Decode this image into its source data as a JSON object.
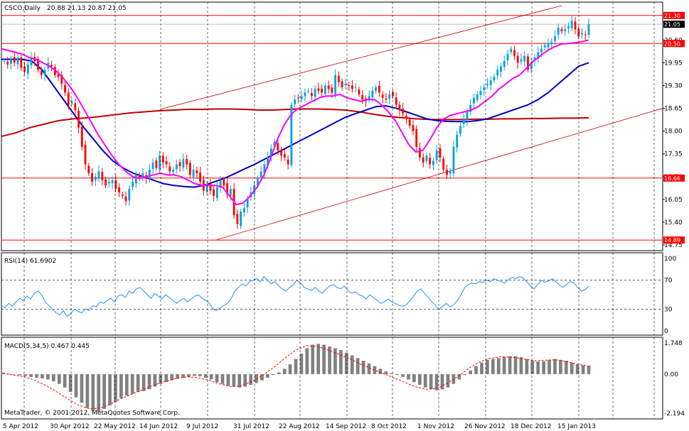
{
  "chart_data": [
    {
      "type": "candlestick",
      "panel": "price",
      "title": "CSCO,Daily",
      "ohlc_header": "20.88 21.13 20.87 21.05",
      "ylim": [
        14.75,
        21.6
      ],
      "y_ticks": [
        "20.60",
        "19.95",
        "19.30",
        "18.65",
        "18.00",
        "17.35",
        "16.70",
        "16.05",
        "15.40",
        "14.75"
      ],
      "x_tick_labels": [
        "5 Apr 2012",
        "30 Apr 2012",
        "22 May 2012",
        "14 Jun 2012",
        "9 Jul 2012",
        "31 Jul 2012",
        "22 Aug 2012",
        "14 Sep 2012",
        "8 Oct 2012",
        "1 Nov 2012",
        "26 Nov 2012",
        "18 Dec 2012",
        "15 Jan 2013"
      ],
      "horizontal_levels": [
        {
          "value": 21.3,
          "label": "21.30",
          "color": "#ff0000"
        },
        {
          "value": 20.5,
          "label": "20.50",
          "color": "#ff0000"
        },
        {
          "value": 16.66,
          "label": "16.66",
          "color": "#ff0000"
        },
        {
          "value": 14.89,
          "label": "14.89",
          "color": "#ff0000"
        }
      ],
      "current_price": {
        "value": 21.05,
        "label": "21.05"
      },
      "colors": {
        "bull": "#00a0e0",
        "bear": "#ff0000",
        "sma_fast": "#ff00ff",
        "sma_mid": "#0000c0",
        "sma_slow": "#c00000",
        "channel": "#c00000",
        "grid": "#000000"
      },
      "close": [
        20.0,
        19.9,
        20.05,
        19.95,
        20.1,
        19.8,
        19.7,
        19.9,
        20.1,
        20.0,
        19.75,
        19.6,
        19.75,
        19.95,
        19.85,
        19.6,
        19.55,
        19.35,
        19.1,
        18.75,
        18.85,
        18.6,
        18.1,
        17.55,
        17.05,
        16.8,
        16.55,
        16.7,
        16.85,
        16.6,
        16.45,
        16.55,
        16.6,
        16.35,
        16.25,
        16.15,
        16.0,
        16.35,
        16.55,
        16.75,
        16.65,
        16.8,
        16.65,
        16.9,
        17.1,
        16.95,
        17.3,
        17.1,
        17.05,
        16.85,
        16.9,
        17.05,
        17.0,
        17.2,
        17.05,
        16.75,
        16.9,
        16.8,
        16.55,
        16.3,
        16.5,
        16.3,
        16.15,
        16.4,
        16.6,
        16.45,
        16.2,
        16.35,
        15.6,
        15.35,
        15.7,
        15.8,
        16.05,
        16.25,
        16.45,
        16.65,
        16.85,
        17.05,
        17.25,
        17.5,
        17.7,
        17.45,
        17.3,
        17.25,
        17.05,
        18.75,
        18.9,
        18.95,
        19.0,
        19.1,
        19.15,
        19.0,
        19.2,
        19.15,
        19.1,
        19.3,
        19.2,
        19.1,
        19.6,
        19.4,
        19.25,
        19.35,
        19.3,
        19.2,
        19.25,
        19.05,
        18.9,
        18.85,
        19.0,
        19.15,
        19.25,
        19.1,
        18.95,
        18.9,
        19.05,
        19.0,
        18.75,
        18.6,
        18.5,
        18.35,
        18.15,
        18.0,
        17.55,
        17.25,
        17.1,
        17.3,
        17.05,
        17.15,
        17.45,
        17.25,
        16.9,
        16.75,
        16.85,
        17.55,
        17.9,
        18.15,
        18.35,
        18.55,
        18.75,
        18.95,
        19.05,
        19.15,
        19.25,
        19.35,
        19.45,
        19.55,
        19.75,
        19.85,
        20.0,
        20.2,
        20.35,
        20.15,
        19.95,
        20.05,
        20.15,
        19.75,
        19.95,
        20.1,
        20.25,
        20.35,
        20.45,
        20.5,
        20.55,
        20.7,
        20.95,
        20.85,
        20.9,
        21.0,
        21.15,
        20.9,
        20.7,
        20.8,
        20.75,
        21.05
      ],
      "sma_fast": [
        20.35,
        20.3,
        20.25,
        20.2,
        20.1,
        20.05,
        19.95,
        19.85,
        19.7,
        19.5,
        19.25,
        18.95,
        18.6,
        18.25,
        17.9,
        17.6,
        17.3,
        17.05,
        16.85,
        16.7,
        16.65,
        16.7,
        16.75,
        16.8,
        16.75,
        16.75,
        16.7,
        16.6,
        16.5,
        16.45,
        16.45,
        16.45,
        16.4,
        16.15,
        15.9,
        15.95,
        16.15,
        16.4,
        16.75,
        17.25,
        17.8,
        18.2,
        18.5,
        18.65,
        18.75,
        18.85,
        18.95,
        19.0,
        19.0,
        19.05,
        18.95,
        18.9,
        18.85,
        18.9,
        18.9,
        18.75,
        18.55,
        18.3,
        17.95,
        17.6,
        17.4,
        17.45,
        17.75,
        18.1,
        18.35,
        18.45,
        18.5,
        18.55,
        18.6,
        18.7,
        18.85,
        19.0,
        19.2,
        19.35,
        19.5,
        19.6,
        19.8,
        20.0,
        20.15,
        20.3,
        20.4,
        20.48,
        20.5,
        20.52,
        20.55,
        20.6
      ],
      "sma_mid": [
        20.05,
        20.05,
        20.05,
        20.0,
        19.75,
        19.35,
        18.95,
        18.55,
        18.15,
        17.8,
        17.45,
        17.15,
        16.95,
        16.8,
        16.7,
        16.6,
        16.5,
        16.45,
        16.42,
        16.4,
        16.45,
        16.55,
        16.65,
        16.78,
        16.92,
        17.05,
        17.2,
        17.35,
        17.5,
        17.65,
        17.8,
        17.95,
        18.1,
        18.25,
        18.4,
        18.5,
        18.6,
        18.7,
        18.72,
        18.65,
        18.55,
        18.45,
        18.35,
        18.3,
        18.28,
        18.27,
        18.27,
        18.3,
        18.35,
        18.45,
        18.55,
        18.65,
        18.75,
        18.9,
        19.1,
        19.35,
        19.6,
        19.85,
        19.95
      ],
      "sma_slow": [
        17.85,
        17.95,
        18.1,
        18.2,
        18.3,
        18.35,
        18.38,
        18.42,
        18.47,
        18.52,
        18.55,
        18.58,
        18.6,
        18.62,
        18.62,
        18.63,
        18.63,
        18.62,
        18.6,
        18.6,
        18.62,
        18.63,
        18.63,
        18.62,
        18.6,
        18.55,
        18.48,
        18.42,
        18.38,
        18.35,
        18.33,
        18.33,
        18.33,
        18.34,
        18.34,
        18.35,
        18.35,
        18.36,
        18.36,
        18.37,
        18.37,
        18.38
      ]
    },
    {
      "type": "line",
      "panel": "rsi",
      "title": "RSI(14) 61.6902",
      "ylim": [
        0,
        100
      ],
      "y_ticks": [
        "100",
        "70",
        "30",
        "0"
      ],
      "levels": [
        70,
        30
      ],
      "color": "#1e90ff",
      "values": [
        35,
        32,
        38,
        34,
        40,
        45,
        42,
        48,
        44,
        52,
        55,
        50,
        40,
        35,
        30,
        25,
        22,
        28,
        20,
        24,
        30,
        27,
        25,
        30,
        28,
        35,
        33,
        40,
        38,
        42,
        45,
        40,
        48,
        50,
        46,
        55,
        52,
        58,
        60,
        55,
        50,
        45,
        52,
        48,
        44,
        50,
        46,
        42,
        38,
        42,
        45,
        40,
        44,
        48,
        50,
        45,
        42,
        38,
        30,
        28,
        32,
        35,
        38,
        45,
        55,
        60,
        65,
        62,
        68,
        70,
        72,
        68,
        75,
        70,
        65,
        68,
        62,
        58,
        55,
        60,
        64,
        70,
        66,
        60,
        58,
        56,
        60,
        55,
        52,
        58,
        62,
        64,
        60,
        58,
        62,
        56,
        52,
        54,
        50,
        48,
        44,
        50,
        46,
        42,
        38,
        40,
        44,
        40,
        38,
        35,
        34,
        36,
        42,
        48,
        55,
        58,
        52,
        46,
        40,
        35,
        30,
        34,
        38,
        33,
        36,
        42,
        50,
        60,
        64,
        66,
        65,
        68,
        67,
        70,
        68,
        72,
        70,
        68,
        66,
        71,
        74,
        72,
        75,
        73,
        68,
        62,
        58,
        64,
        70,
        67,
        69,
        72,
        68,
        63,
        60,
        65,
        68,
        66,
        60,
        55,
        57,
        61.69
      ]
    },
    {
      "type": "bar",
      "panel": "macd",
      "title": "MACD(5,34,5) 0.467 0.445",
      "ylim": [
        -2.194,
        1.748
      ],
      "y_ticks": [
        "1.748",
        "0.00",
        "-2.194"
      ],
      "colors": {
        "histogram": "#808080",
        "signal": "#ff0000"
      },
      "histogram": [
        0.08,
        0.03,
        -0.02,
        -0.06,
        -0.1,
        -0.16,
        -0.2,
        -0.24,
        -0.3,
        -0.4,
        -0.55,
        -0.75,
        -1.0,
        -1.3,
        -1.6,
        -1.9,
        -2.05,
        -2.1,
        -1.95,
        -1.75,
        -1.55,
        -1.35,
        -1.2,
        -1.1,
        -1.0,
        -0.95,
        -0.85,
        -0.7,
        -0.55,
        -0.45,
        -0.35,
        -0.25,
        -0.2,
        -0.15,
        -0.1,
        -0.12,
        -0.2,
        -0.3,
        -0.45,
        -0.55,
        -0.65,
        -0.7,
        -0.75,
        -0.7,
        -0.6,
        -0.5,
        -0.35,
        -0.2,
        -0.05,
        0.1,
        0.3,
        0.55,
        0.85,
        1.15,
        1.45,
        1.65,
        1.7,
        1.65,
        1.55,
        1.45,
        1.35,
        1.2,
        1.05,
        0.9,
        0.75,
        0.6,
        0.45,
        0.3,
        0.15,
        0.05,
        -0.05,
        -0.15,
        -0.3,
        -0.45,
        -0.6,
        -0.75,
        -0.85,
        -0.9,
        -0.85,
        -0.75,
        -0.55,
        -0.3,
        -0.05,
        0.2,
        0.45,
        0.65,
        0.8,
        0.85,
        0.9,
        0.95,
        1.0,
        1.0,
        0.95,
        0.85,
        0.75,
        0.7,
        0.72,
        0.8,
        0.85,
        0.8,
        0.75,
        0.65,
        0.55,
        0.5,
        0.47
      ],
      "signal": [
        0.05,
        -0.05,
        -0.15,
        -0.35,
        -0.65,
        -1.0,
        -1.4,
        -1.75,
        -1.95,
        -1.9,
        -1.65,
        -1.35,
        -1.1,
        -0.85,
        -0.6,
        -0.4,
        -0.25,
        -0.15,
        -0.2,
        -0.35,
        -0.55,
        -0.7,
        -0.65,
        -0.4,
        -0.05,
        0.4,
        0.9,
        1.35,
        1.6,
        1.55,
        1.35,
        1.1,
        0.85,
        0.55,
        0.3,
        0.05,
        -0.2,
        -0.45,
        -0.7,
        -0.85,
        -0.8,
        -0.5,
        -0.1,
        0.35,
        0.7,
        0.9,
        0.98,
        0.95,
        0.85,
        0.75,
        0.78,
        0.8,
        0.7,
        0.55,
        0.445
      ]
    }
  ],
  "footer": {
    "copyright": "MetaTrader, © 2001-2012, MetaQuotes Software Corp."
  }
}
